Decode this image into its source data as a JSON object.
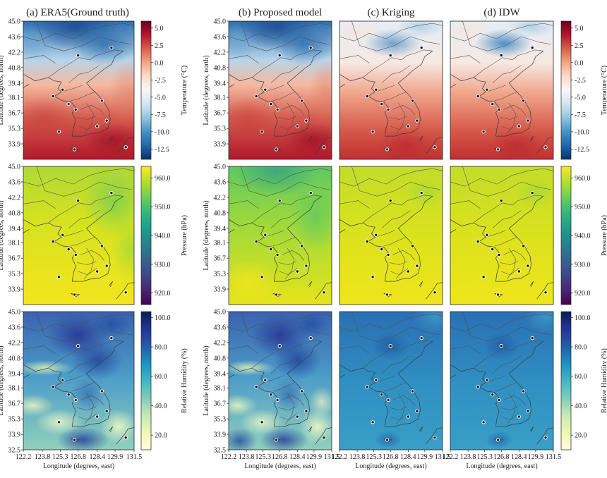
{
  "figure": {
    "panel_titles": [
      "(a) ERA5(Ground truth)",
      "(b) Proposed model",
      "(c) Kriging",
      "(d) IDW"
    ],
    "y_axis_label": "Latitude (degrees, north)",
    "x_axis_label": "Longitude (degrees, east)",
    "y_ticks": [
      "45.0",
      "43.6",
      "42.2",
      "40.8",
      "39.4",
      "38.1",
      "36.7",
      "35.3",
      "33.9"
    ],
    "y_ticks_bottom_row": [
      "45.0",
      "43.6",
      "42.2",
      "40.8",
      "39.4",
      "38.1",
      "36.7",
      "35.3",
      "33.9",
      "32.5"
    ],
    "x_ticks": [
      "122.2",
      "123.8",
      "125.3",
      "126.8",
      "128.4",
      "129.9",
      "131.5"
    ]
  },
  "chart_data": [
    {
      "type": "heatmap",
      "variable": "temperature",
      "colorbar_label": "Temperature (°C)",
      "colorbar_ticks": [
        "5.0",
        "2.5",
        "0.0",
        "-2.5",
        "-5.0",
        "-7.5",
        "-10.0",
        "-12.5"
      ],
      "colorbar_values": [
        5.0,
        2.5,
        0.0,
        -2.5,
        -5.0,
        -7.5,
        -10.0,
        -12.5
      ],
      "range": [
        -14.0,
        6.0
      ],
      "colormap": "RdBu_r"
    },
    {
      "type": "heatmap",
      "variable": "pressure",
      "colorbar_label": "Pressure (hPa)",
      "colorbar_ticks": [
        "960.0",
        "950.0",
        "940.0",
        "930.0",
        "920.0"
      ],
      "colorbar_values": [
        960,
        950,
        940,
        930,
        920
      ],
      "range": [
        916.0,
        964.0
      ],
      "colormap": "viridis"
    },
    {
      "type": "heatmap",
      "variable": "relative_humidity",
      "colorbar_label": "Relative Humidity (%)",
      "colorbar_ticks": [
        "100.0",
        "80.0",
        "60.0",
        "40.0",
        "20.0"
      ],
      "colorbar_values": [
        100,
        80,
        60,
        40,
        20
      ],
      "range": [
        10.0,
        104.0
      ],
      "colormap": "YlGnBu"
    }
  ],
  "stations": [
    {
      "lon": 126.8,
      "lat": 41.9
    },
    {
      "lon": 129.6,
      "lat": 42.6
    },
    {
      "lon": 125.5,
      "lat": 38.8
    },
    {
      "lon": 124.7,
      "lat": 38.2
    },
    {
      "lon": 126.0,
      "lat": 37.5
    },
    {
      "lon": 126.6,
      "lat": 37.0
    },
    {
      "lon": 128.8,
      "lat": 37.8
    },
    {
      "lon": 129.2,
      "lat": 36.0
    },
    {
      "lon": 128.4,
      "lat": 35.5
    },
    {
      "lon": 125.2,
      "lat": 35.0
    },
    {
      "lon": 126.5,
      "lat": 33.4
    },
    {
      "lon": 130.8,
      "lat": 33.6
    }
  ],
  "colors": {
    "station_dot": "#111111",
    "station_ring": "#ffffff",
    "border": "#404040"
  }
}
